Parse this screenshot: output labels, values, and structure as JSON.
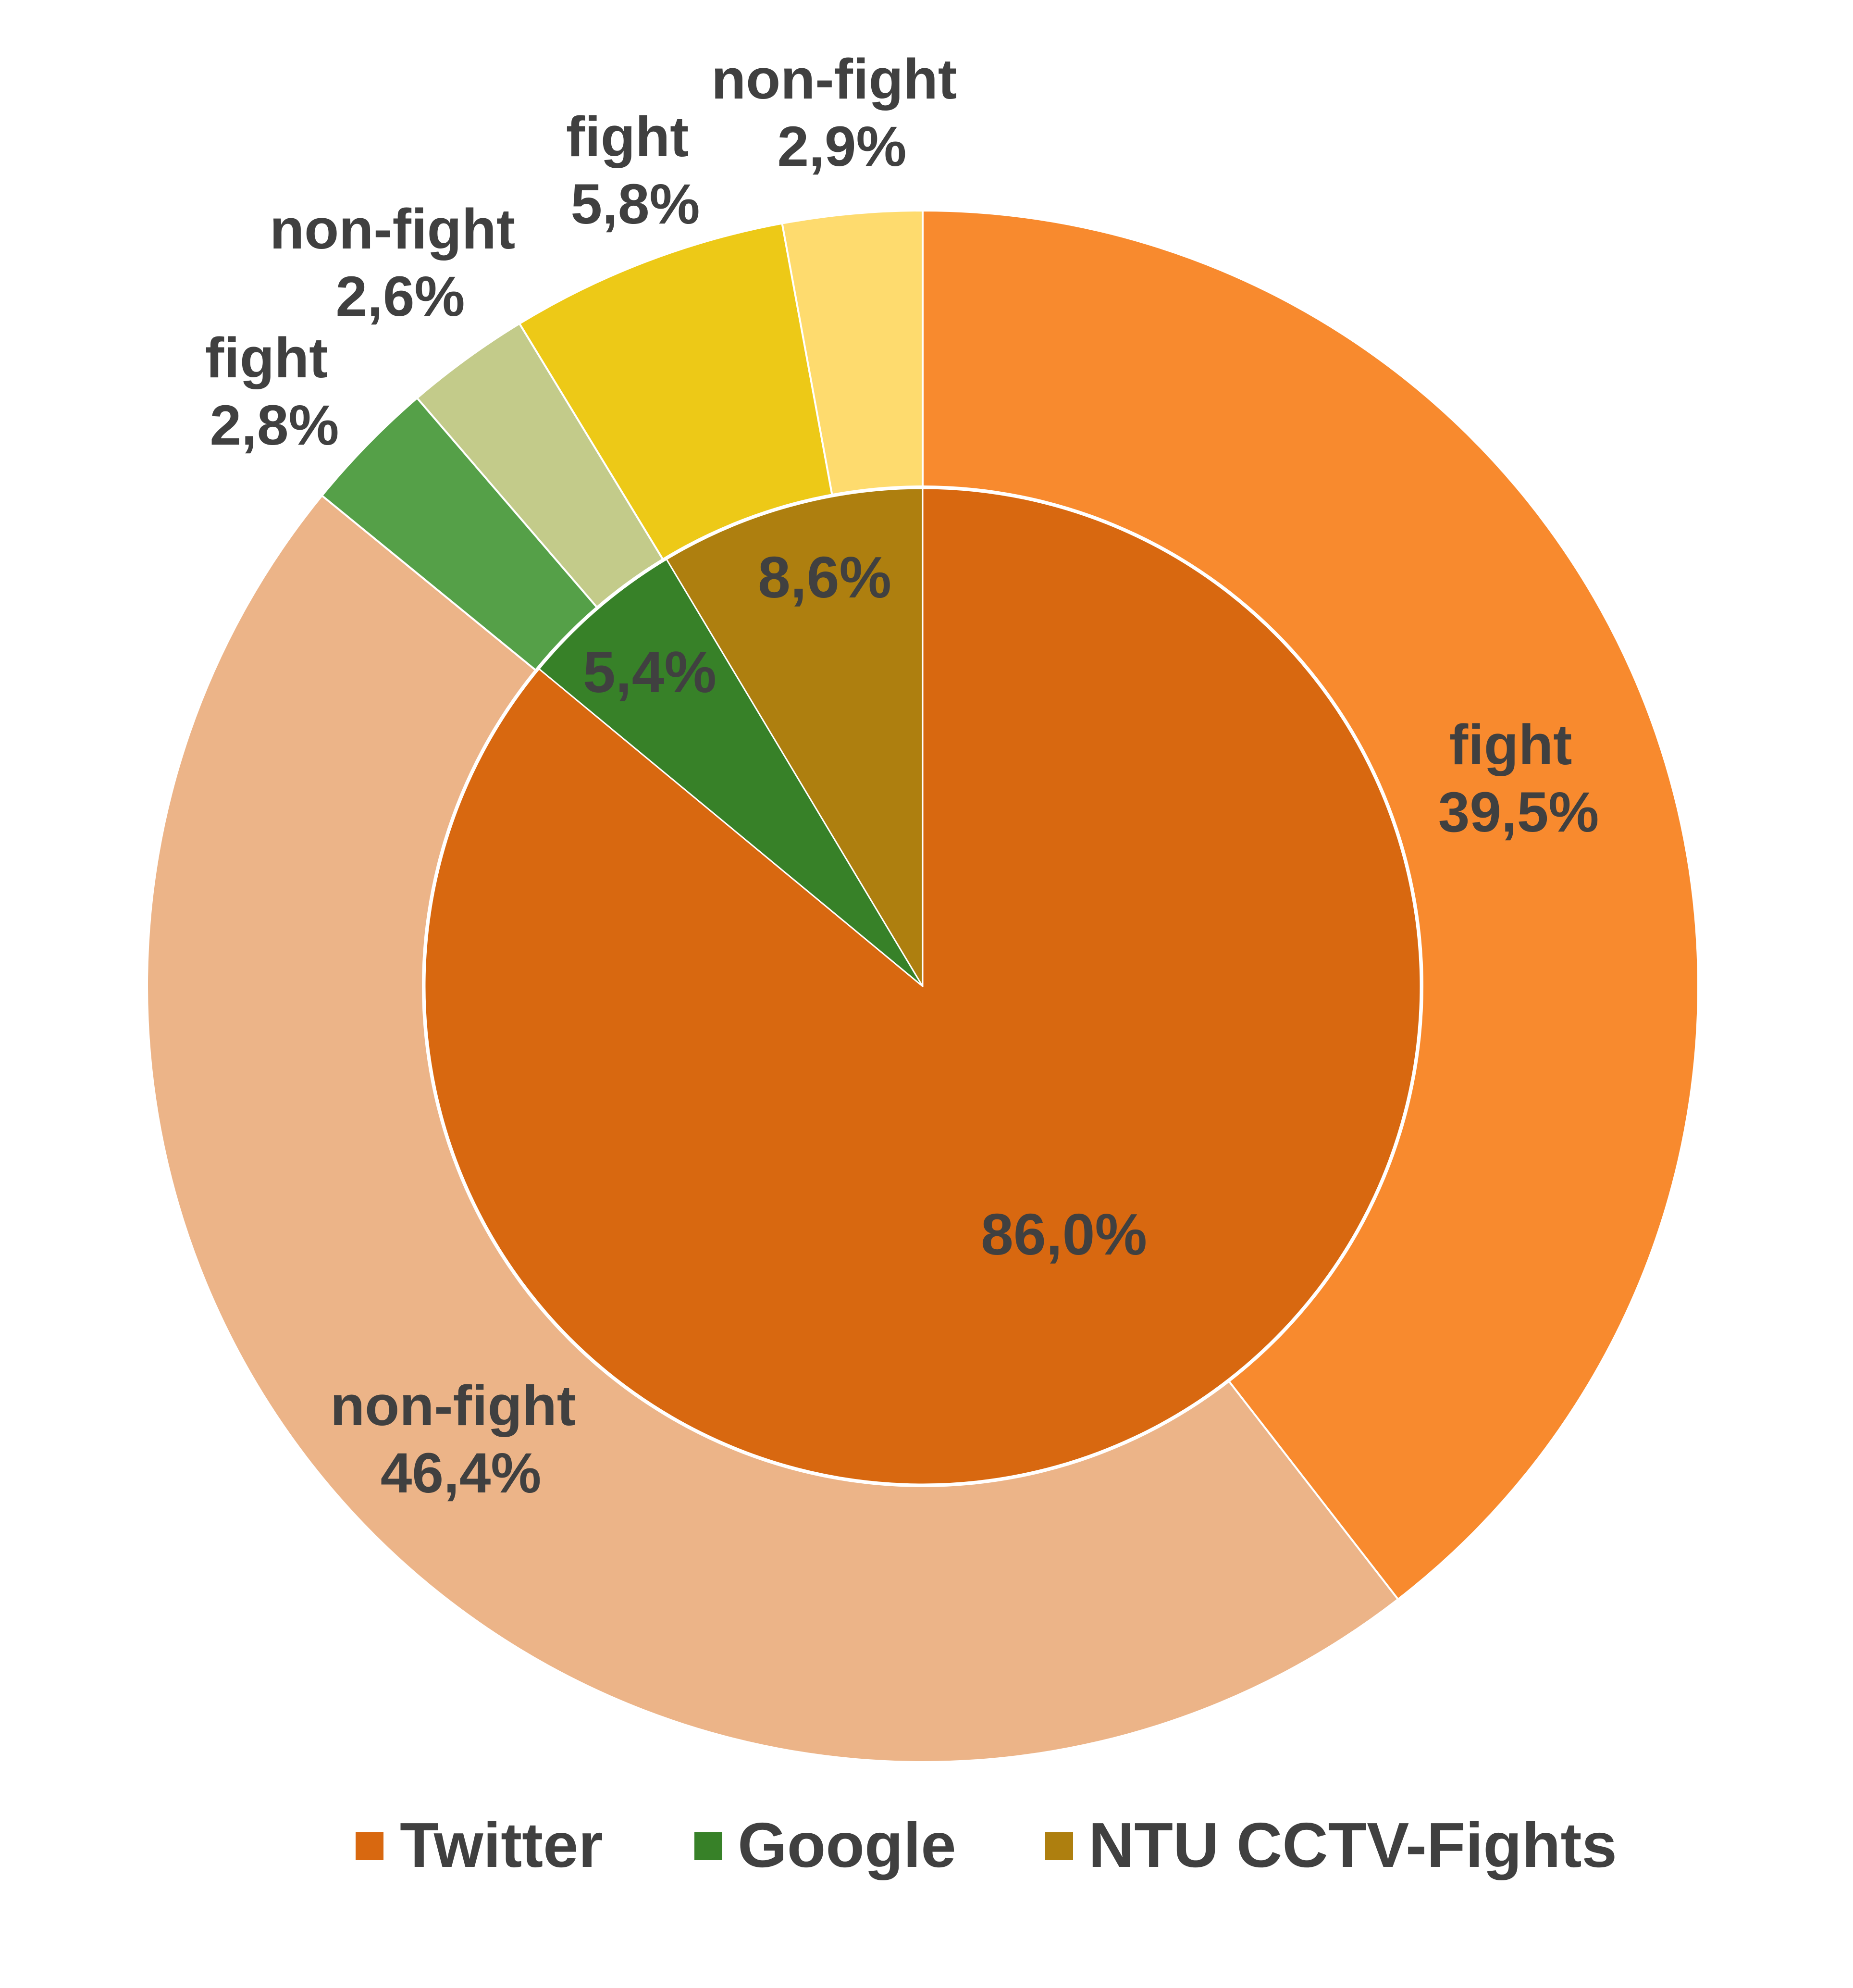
{
  "chart_data": {
    "type": "pie",
    "subtype": "nested-donut",
    "title": "",
    "decimal_separator": ",",
    "legend": {
      "position": "bottom",
      "entries": [
        {
          "label": "Twitter",
          "color": "#D86810"
        },
        {
          "label": "Google",
          "color": "#378128"
        },
        {
          "label": "NTU CCTV-Fights",
          "color": "#AE7F0F"
        }
      ]
    },
    "inner_ring": {
      "name": "Source",
      "slices": [
        {
          "label": "Twitter",
          "value": 86.0,
          "display": "86,0%",
          "color": "#D86810"
        },
        {
          "label": "Google",
          "value": 5.4,
          "display": "5,4%",
          "color": "#378128"
        },
        {
          "label": "NTU CCTV-Fights",
          "value": 8.6,
          "display": "8,6%",
          "color": "#AE7F0F"
        }
      ]
    },
    "outer_ring": {
      "name": "Class",
      "slices": [
        {
          "source": "Twitter",
          "label": "fight",
          "value": 39.5,
          "display": "39,5%",
          "color": "#F88A2E"
        },
        {
          "source": "Twitter",
          "label": "non-fight",
          "value": 46.4,
          "display": "46,4%",
          "color": "#ECB488"
        },
        {
          "source": "Google",
          "label": "fight",
          "value": 2.8,
          "display": "2,8%",
          "color": "#55A048"
        },
        {
          "source": "Google",
          "label": "non-fight",
          "value": 2.6,
          "display": "2,6%",
          "color": "#C3CB8A"
        },
        {
          "source": "NTU CCTV-Fights",
          "label": "fight",
          "value": 5.8,
          "display": "5,8%",
          "color": "#EDC917"
        },
        {
          "source": "NTU CCTV-Fights",
          "label": "non-fight",
          "value": 2.9,
          "display": "2,9%",
          "color": "#FEDB6E"
        }
      ]
    },
    "start_angle_deg": 0,
    "direction": "clockwise"
  },
  "labels": {
    "outer": [
      {
        "line1": "fight",
        "line2": "39,5%"
      },
      {
        "line1": "non-fight",
        "line2": "46,4%"
      },
      {
        "line1": "fight",
        "line2": "2,8%"
      },
      {
        "line1": "non-fight",
        "line2": "2,6%"
      },
      {
        "line1": "fight",
        "line2": "5,8%"
      },
      {
        "line1": "non-fight",
        "line2": "2,9%"
      }
    ],
    "inner": [
      "86,0%",
      "5,4%",
      "8,6%"
    ]
  },
  "legend": {
    "items": [
      {
        "label": "Twitter",
        "color": "#D86810"
      },
      {
        "label": "Google",
        "color": "#378128"
      },
      {
        "label": "NTU CCTV-Fights",
        "color": "#AE7F0F"
      }
    ]
  }
}
